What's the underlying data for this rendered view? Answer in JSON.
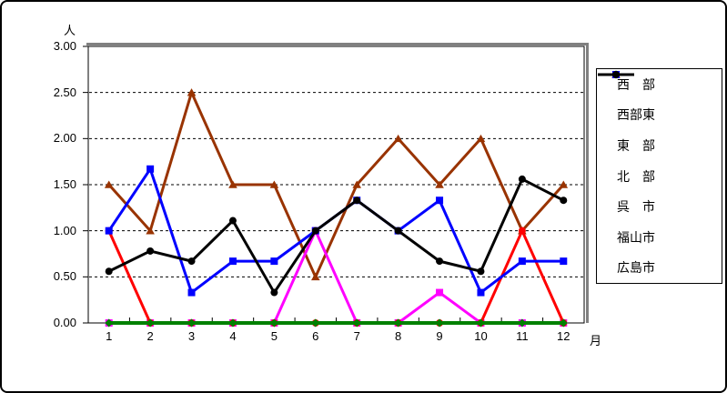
{
  "chart_data": {
    "type": "line",
    "x": [
      1,
      2,
      3,
      4,
      5,
      6,
      7,
      8,
      9,
      10,
      11,
      12
    ],
    "x_axis_title": "月",
    "y_axis_title": "人",
    "ylim": [
      0,
      3.0
    ],
    "ytick_step": 0.5,
    "ytick_labels": [
      "3.00",
      "2.50",
      "2.00",
      "1.50",
      "1.00",
      "0.50",
      "0.00"
    ],
    "grid": "horizontal-dashed",
    "legend_position": "right",
    "series": [
      {
        "name": "西　部",
        "color": "#00FFFF",
        "marker": "diamond",
        "values": [
          0.0,
          0.0,
          0.0,
          0.0,
          0.0,
          0.0,
          0.0,
          0.0,
          0.0,
          0.0,
          0.0,
          0.0
        ]
      },
      {
        "name": "西部東",
        "color": "#993300",
        "marker": "triangle",
        "values": [
          1.5,
          1.0,
          2.5,
          1.5,
          1.5,
          0.5,
          1.5,
          2.0,
          1.5,
          2.0,
          1.0,
          1.5
        ]
      },
      {
        "name": "東　部",
        "color": "#FF00FF",
        "marker": "square",
        "values": [
          0.0,
          0.0,
          0.0,
          0.0,
          0.0,
          1.0,
          0.0,
          0.0,
          0.33,
          0.0,
          0.0,
          0.0
        ]
      },
      {
        "name": "北　部",
        "color": "#FF0000",
        "marker": "circle",
        "values": [
          1.0,
          0.0,
          0.0,
          0.0,
          0.0,
          0.0,
          0.0,
          0.0,
          0.0,
          0.0,
          1.0,
          0.0
        ]
      },
      {
        "name": "呉　市",
        "color": "#008000",
        "marker": "diamond",
        "values": [
          0.0,
          0.0,
          0.0,
          0.0,
          0.0,
          0.0,
          0.0,
          0.0,
          0.0,
          0.0,
          0.0,
          0.0
        ]
      },
      {
        "name": "福山市",
        "color": "#0000FF",
        "marker": "square",
        "values": [
          1.0,
          1.67,
          0.33,
          0.67,
          0.67,
          1.0,
          1.33,
          1.0,
          1.33,
          0.33,
          0.67,
          0.67
        ]
      },
      {
        "name": "広島市",
        "color": "#000000",
        "marker": "circle",
        "values": [
          0.56,
          0.78,
          0.67,
          1.11,
          0.33,
          1.0,
          1.33,
          1.0,
          0.67,
          0.56,
          1.56,
          1.33
        ]
      }
    ],
    "plot_border_shadow_color": "#808080"
  }
}
